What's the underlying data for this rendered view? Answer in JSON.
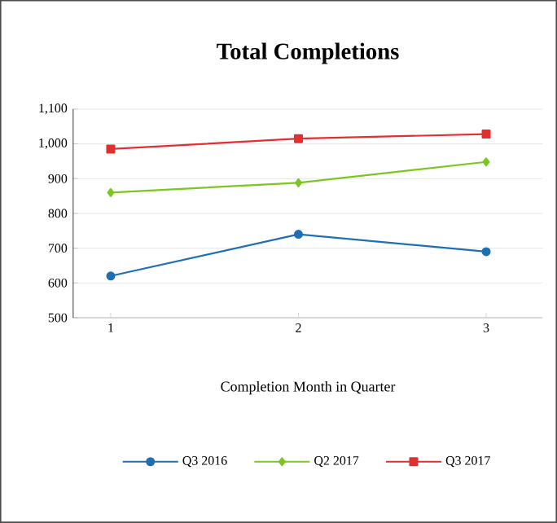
{
  "chart_data": {
    "type": "line",
    "title": "Total Completions",
    "xlabel": "Completion Month in Quarter",
    "categories": [
      "1",
      "2",
      "3"
    ],
    "series": [
      {
        "name": "Q3 2016",
        "color": "#1f6fb4",
        "marker": "circle",
        "values": [
          620,
          740,
          690
        ]
      },
      {
        "name": "Q2 2017",
        "color": "#7cc622",
        "marker": "diamond",
        "values": [
          860,
          888,
          948
        ]
      },
      {
        "name": "Q3 2017",
        "color": "#e0302f",
        "marker": "square",
        "values": [
          985,
          1015,
          1028
        ]
      }
    ],
    "ylim": [
      500,
      1100
    ],
    "yticks": [
      500,
      600,
      700,
      800,
      900,
      {
        "value": 1000,
        "label": "1,000"
      },
      {
        "value": 1100,
        "label": "1,100"
      }
    ],
    "grid": "y",
    "legend": "bottom",
    "line_style": "solid"
  }
}
